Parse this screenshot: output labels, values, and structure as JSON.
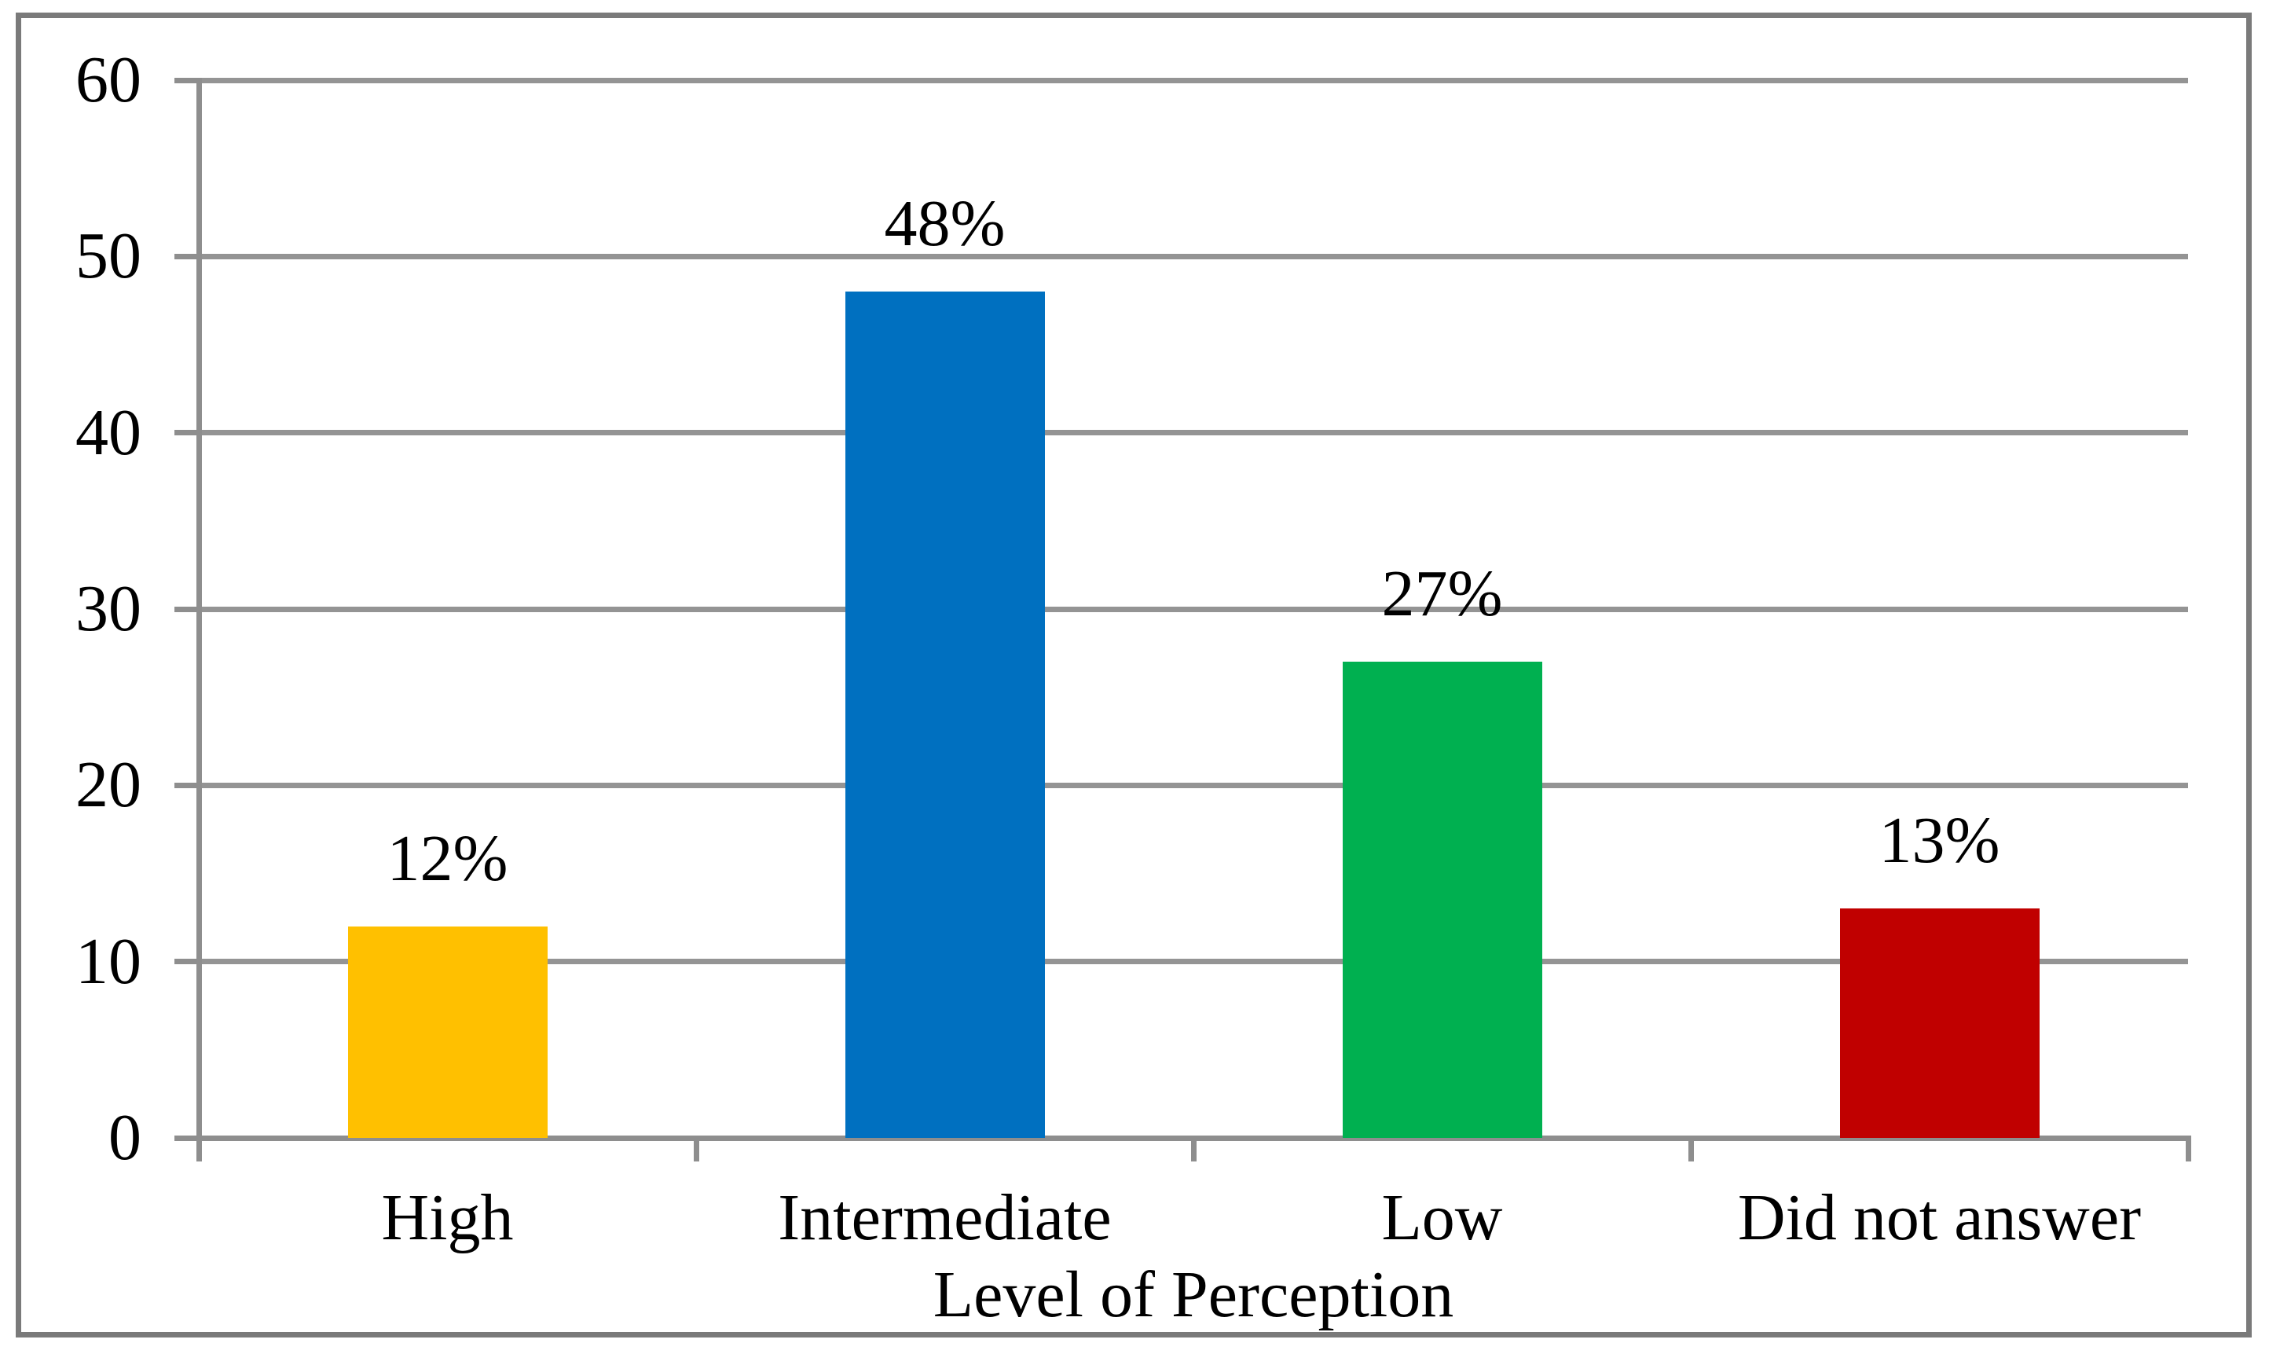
{
  "chart_data": {
    "type": "bar",
    "title": "",
    "categories": [
      "High",
      "Intermediate",
      "Low",
      "Did not answer"
    ],
    "values": [
      12,
      48,
      27,
      13
    ],
    "bar_labels": [
      "12%",
      "48%",
      "27%",
      "13%"
    ],
    "bar_colors": [
      "#FFC000",
      "#0070C0",
      "#00B050",
      "#C00000"
    ],
    "xlabel": "Level of Perception",
    "ylabel": "",
    "ylim": [
      0,
      60
    ],
    "yticks": [
      0,
      10,
      20,
      30,
      40,
      50,
      60
    ],
    "grid": "horizontal-major-gridlines",
    "legend": "none"
  },
  "style": {
    "background": "#FFFFFF",
    "outer_border_color": "#7A7A7A",
    "axis_color": "#8E8E8E",
    "gridline_color": "#949494",
    "text_color": "#000000"
  }
}
